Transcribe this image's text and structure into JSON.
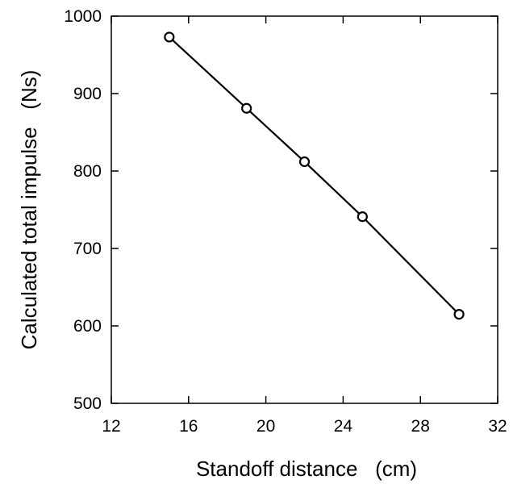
{
  "chart_data": {
    "type": "line",
    "title": "",
    "xlabel": "Standoff distance   (cm)",
    "ylabel": "Calculated total impulse   (Ns)",
    "xlim": [
      12,
      32
    ],
    "ylim": [
      500,
      1000
    ],
    "xticks": [
      12,
      16,
      20,
      24,
      28,
      32
    ],
    "yticks": [
      500,
      600,
      700,
      800,
      900,
      1000
    ],
    "grid": false,
    "legend": "none",
    "series": [
      {
        "x": [
          15,
          19,
          22,
          25,
          30
        ],
        "y": [
          973,
          881,
          812,
          741,
          615
        ],
        "marker": "open-circle",
        "color": "#000000"
      }
    ]
  }
}
